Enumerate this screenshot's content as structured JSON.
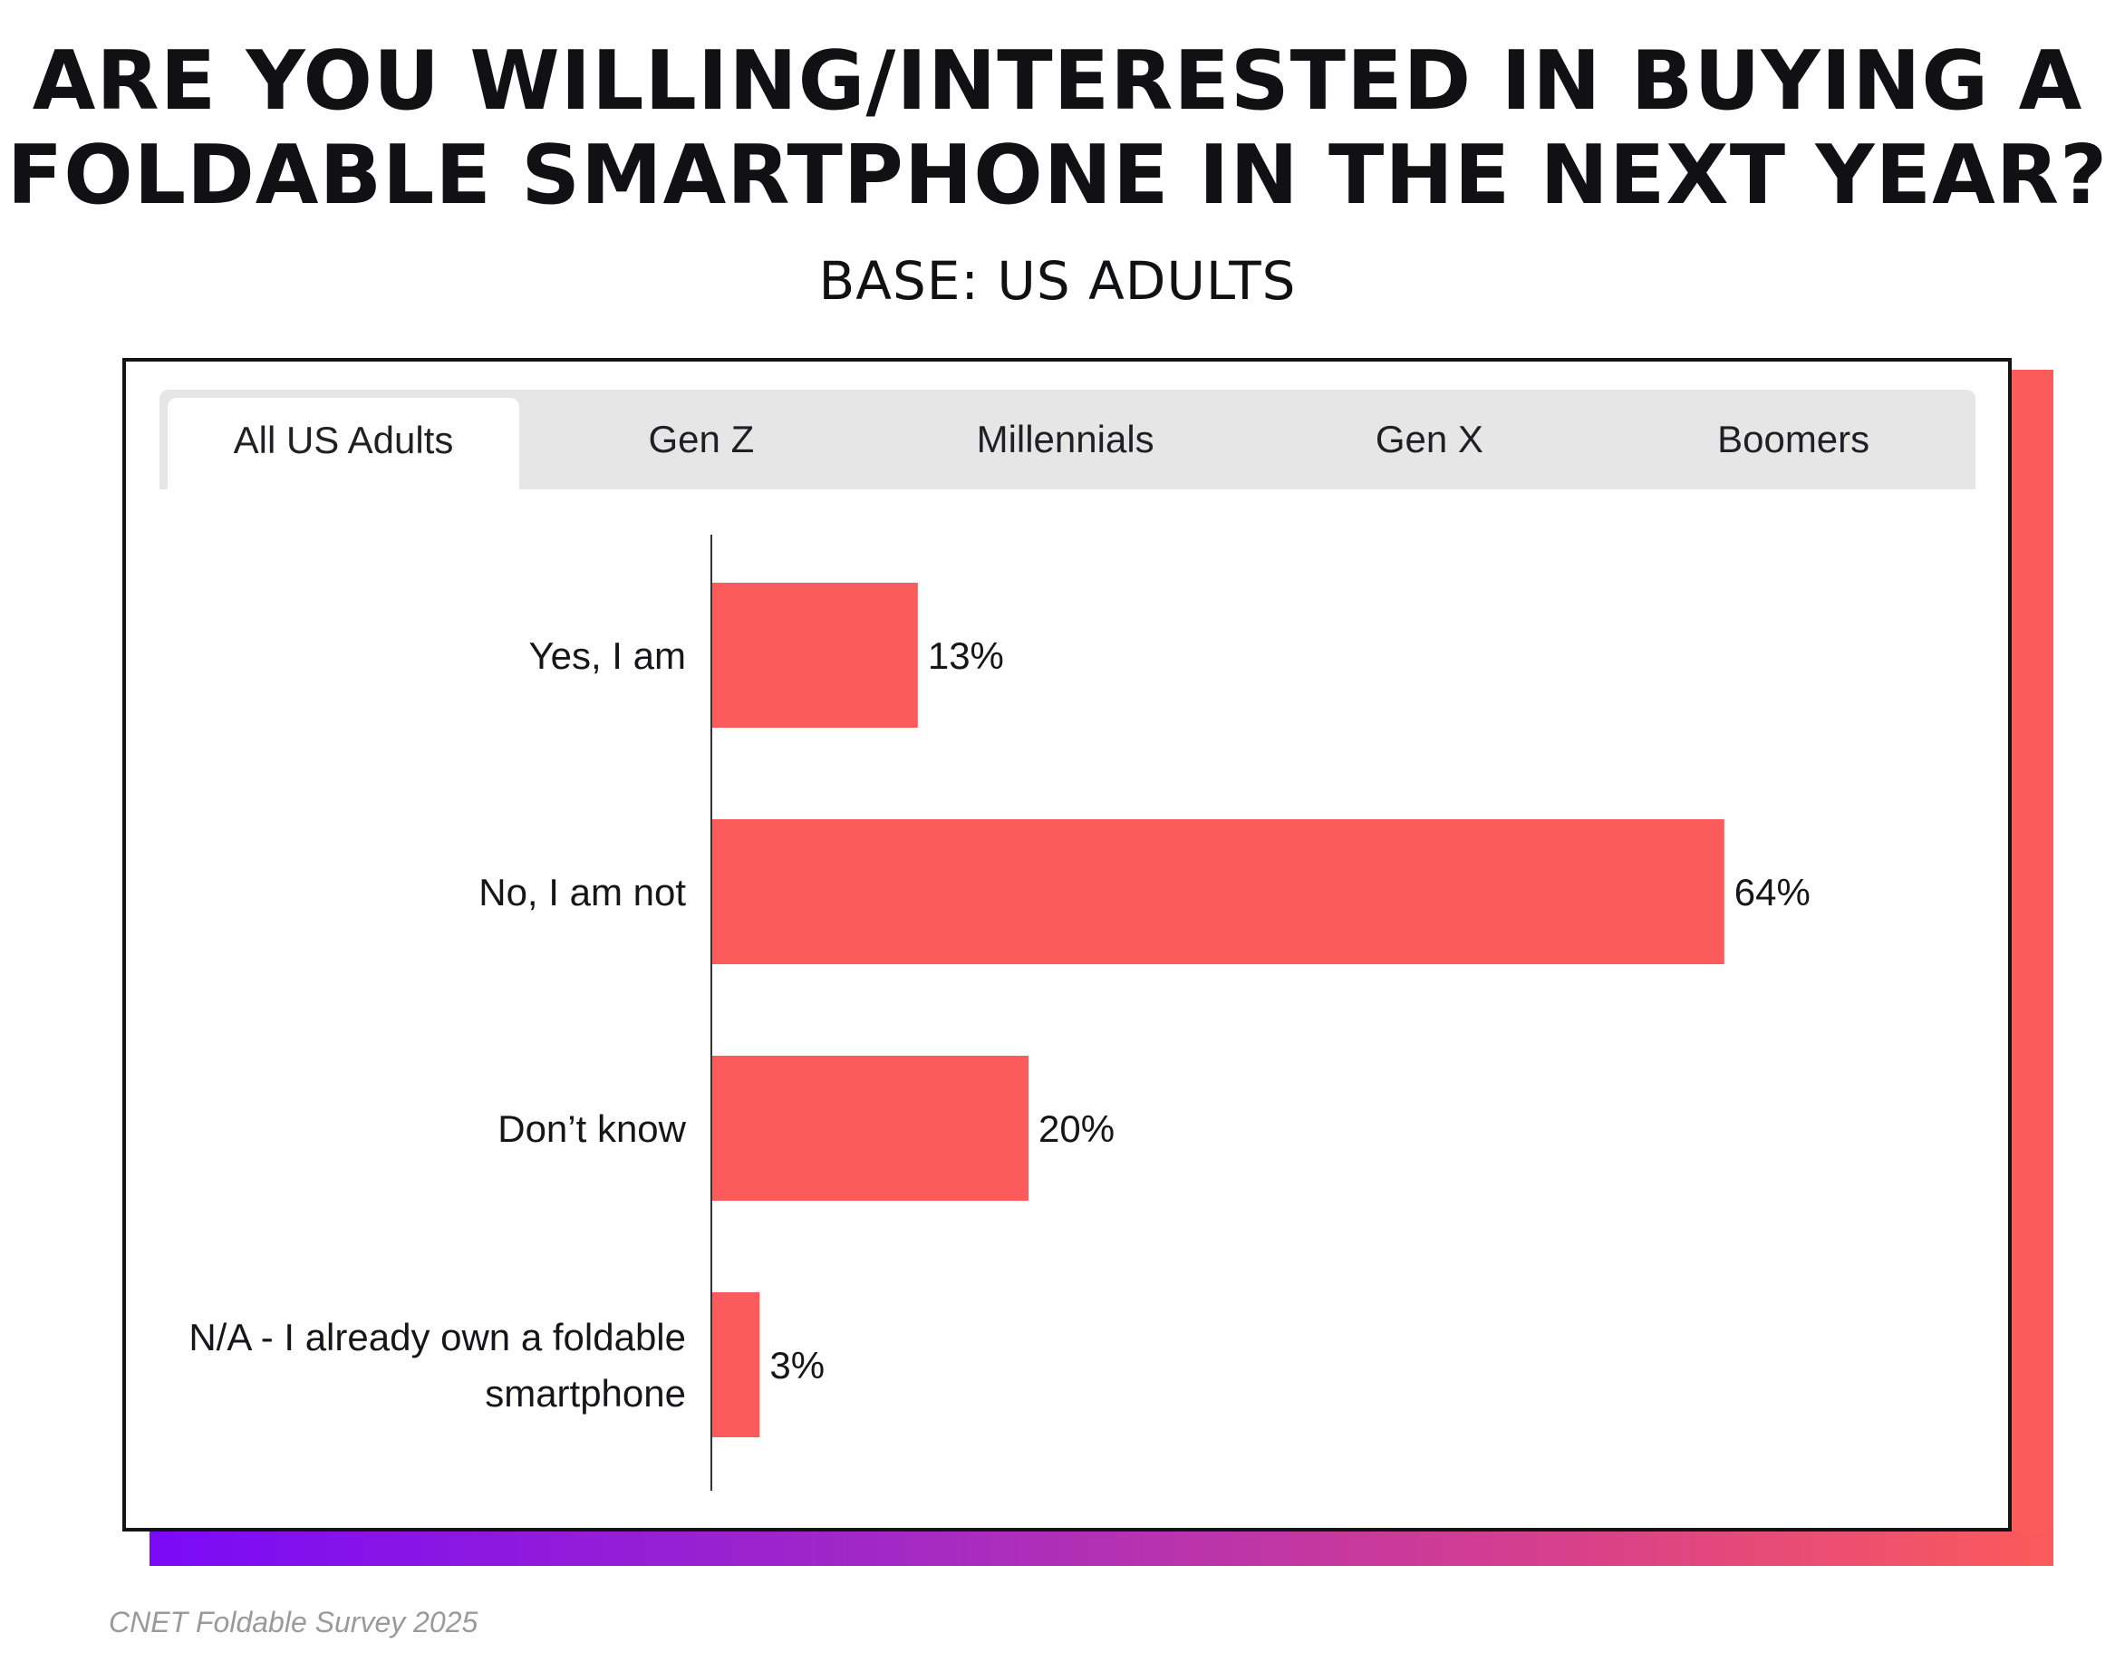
{
  "header": {
    "title_line1": "ARE YOU WILLING/INTERESTED IN BUYING A",
    "title_line2": "FOLDABLE SMARTPHONE IN THE NEXT YEAR?",
    "subtitle": "BASE: US ADULTS"
  },
  "tabs": [
    {
      "label": "All US Adults",
      "active": true
    },
    {
      "label": "Gen Z",
      "active": false
    },
    {
      "label": "Millennials",
      "active": false
    },
    {
      "label": "Gen X",
      "active": false
    },
    {
      "label": "Boomers",
      "active": false
    }
  ],
  "colors": {
    "bar": "#fb5b5a",
    "gradient_start": "#7a0af7",
    "gradient_end": "#fb5b5a",
    "axis": "#333333"
  },
  "footer": {
    "source": "CNET  Foldable Survey 2025"
  },
  "chart_data": {
    "type": "bar",
    "orientation": "horizontal",
    "categories": [
      [
        "Yes, I am"
      ],
      [
        "No, I am not"
      ],
      [
        "Don’t know"
      ],
      [
        "N/A - I already own a foldable",
        "smartphone"
      ]
    ],
    "values": [
      13,
      64,
      20,
      3
    ],
    "value_labels": [
      "13%",
      "64%",
      "20%",
      "3%"
    ],
    "unit": "%",
    "xlim": [
      0,
      100
    ],
    "grid": false,
    "legend": "none"
  }
}
